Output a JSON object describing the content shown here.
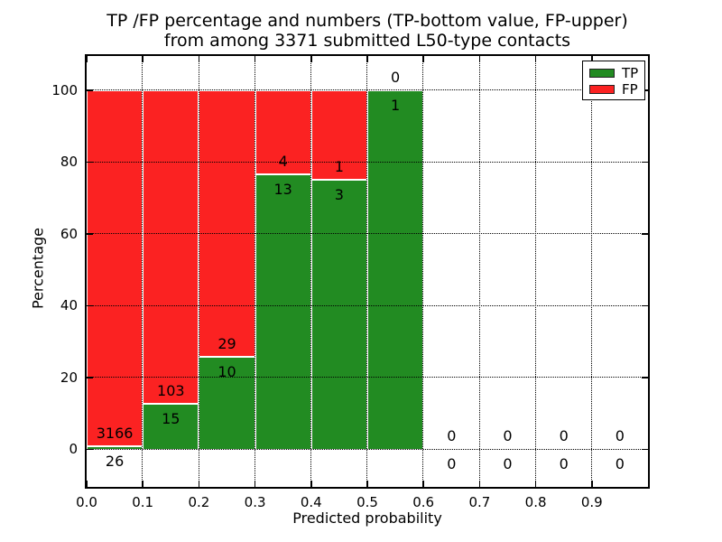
{
  "title": {
    "line1": "TP /FP percentage and numbers (TP-bottom value, FP-upper)",
    "line2": "from among 3371 submitted L50-type contacts"
  },
  "chart_data": {
    "type": "bar",
    "stacked": true,
    "title": "TP /FP percentage and numbers (TP-bottom value, FP-upper) from among 3371 submitted L50-type contacts",
    "xlabel": "Predicted probability",
    "ylabel": "Percentage",
    "total_submitted": 3371,
    "bin_width": 0.1,
    "categories": [
      "0.0-0.1",
      "0.1-0.2",
      "0.2-0.3",
      "0.3-0.4",
      "0.4-0.5",
      "0.5-0.6",
      "0.6-0.7",
      "0.7-0.8",
      "0.8-0.9",
      "0.9-1.0"
    ],
    "series": [
      {
        "name": "TP",
        "color": "#228b22",
        "counts": [
          26,
          15,
          10,
          13,
          3,
          1,
          0,
          0,
          0,
          0
        ]
      },
      {
        "name": "FP",
        "color": "#fb2222",
        "counts": [
          3166,
          103,
          29,
          4,
          1,
          0,
          0,
          0,
          0,
          0
        ]
      }
    ],
    "tp_percent": [
      0.81,
      12.71,
      25.64,
      76.47,
      75.0,
      100.0,
      0,
      0,
      0,
      0
    ],
    "xticks": [
      "0.0",
      "0.1",
      "0.2",
      "0.3",
      "0.4",
      "0.5",
      "0.6",
      "0.7",
      "0.8",
      "0.9"
    ],
    "yticks": [
      0,
      20,
      40,
      60,
      80,
      100
    ],
    "xlim": [
      0.0,
      1.0
    ],
    "ylim": [
      -10.5,
      109.5
    ],
    "grid": true,
    "grid_style": "dotted",
    "legend": {
      "position": "upper right",
      "entries": [
        {
          "label": "TP",
          "color": "#228b22"
        },
        {
          "label": "FP",
          "color": "#fb2222"
        }
      ]
    }
  }
}
